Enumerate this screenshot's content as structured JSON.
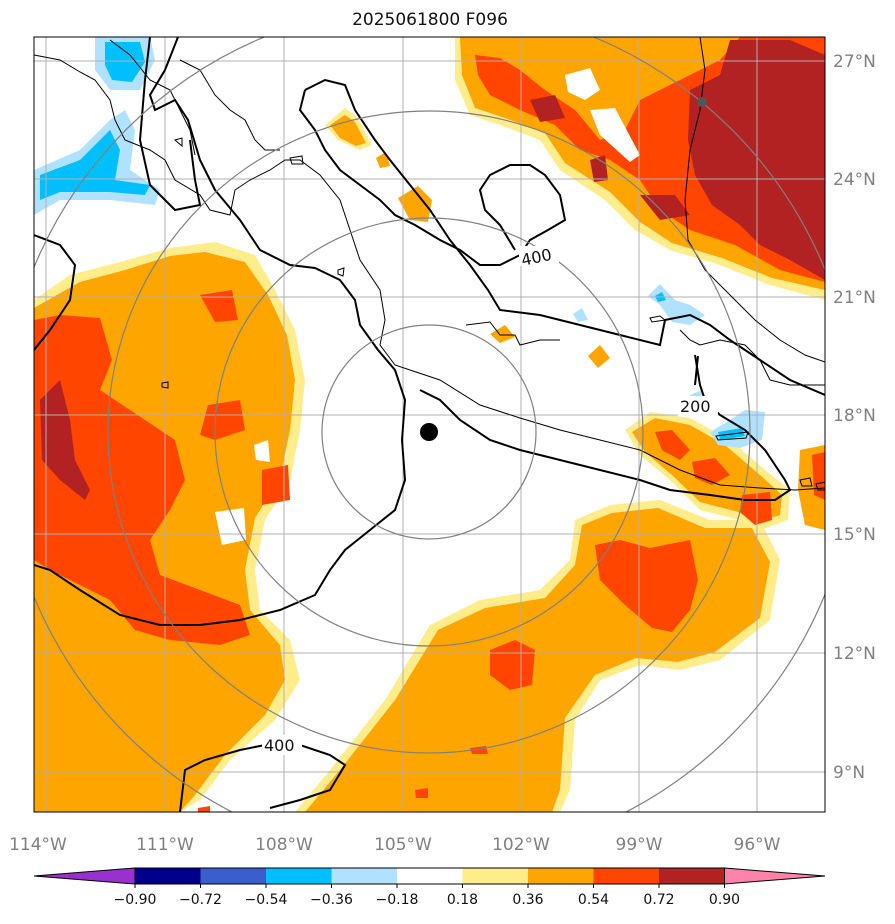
{
  "title": "2025061800 F096",
  "lon_ticks": [
    "114°W",
    "111°W",
    "108°W",
    "105°W",
    "102°W",
    "99°W",
    "96°W"
  ],
  "lat_ticks": [
    "27°N",
    "24°N",
    "21°N",
    "18°N",
    "15°N",
    "12°N",
    "9°N"
  ],
  "contour_labels": [
    "400",
    "200",
    "400"
  ],
  "colorbar": {
    "ticks": [
      "−0.90",
      "−0.72",
      "−0.54",
      "−0.36",
      "−0.18",
      "0.18",
      "0.36",
      "0.54",
      "0.72",
      "0.90"
    ],
    "colors": [
      "#9932cc",
      "#00008b",
      "#3a5fcd",
      "#00bfff",
      "#b0e2ff",
      "#ffffff",
      "#ffec8b",
      "#ffa500",
      "#ff4500",
      "#b22222",
      "#ff82ab"
    ]
  },
  "colors": {
    "light_yellow": "#ffec8b",
    "orange": "#ffa500",
    "red_orange": "#ff4500",
    "dark_red": "#b22222",
    "light_blue": "#b0e2ff",
    "blue": "#00bfff",
    "range_rings": "#808080",
    "gridlines": "#b0b0b0"
  },
  "center_marker": {
    "label": "storm-center",
    "symbol": "filled-circle"
  }
}
